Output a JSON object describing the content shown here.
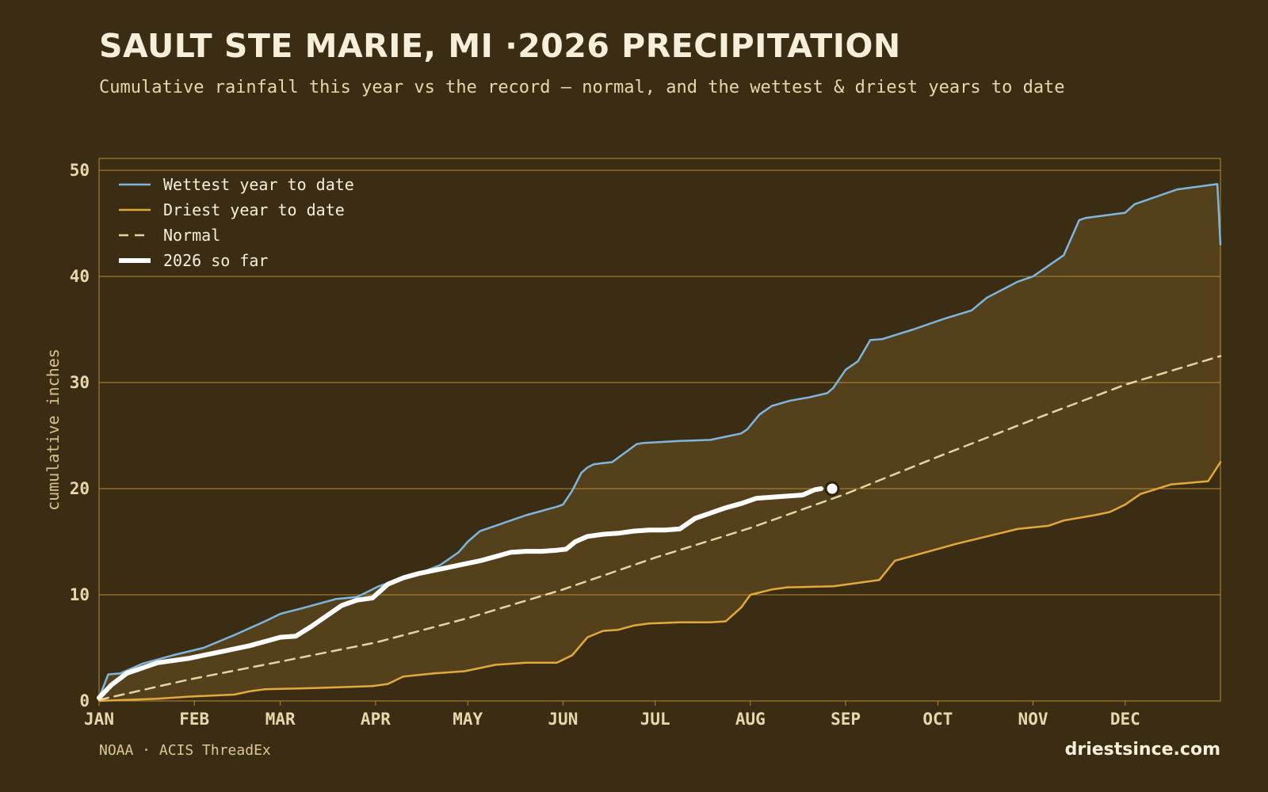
{
  "header": {
    "title": "SAULT STE MARIE, MI ·2026 PRECIPITATION",
    "subtitle": "Cumulative rainfall this year vs the record — normal, and the wettest & driest years to date"
  },
  "footer": {
    "source": "NOAA · ACIS ThreadEx",
    "site": "driestsince.com"
  },
  "colors": {
    "background": "#3a2d14",
    "band_fill": "#54411c",
    "wettest": "#7eb6de",
    "driest": "#e3a93c",
    "normal": "#e6d3a5",
    "current": "#ffffff",
    "grid": "#b88c33"
  },
  "chart_data": {
    "type": "line",
    "title": "SAULT STE MARIE, MI ·2026 PRECIPITATION",
    "ylabel": "cumulative inches",
    "xlabel": "",
    "ylim": [
      0,
      50
    ],
    "yticks": [
      0,
      10,
      20,
      30,
      40,
      50
    ],
    "xlim_day_of_year": [
      1,
      366
    ],
    "xticks": [
      {
        "label": "JAN",
        "day": 1
      },
      {
        "label": "FEB",
        "day": 32
      },
      {
        "label": "MAR",
        "day": 60
      },
      {
        "label": "APR",
        "day": 91
      },
      {
        "label": "MAY",
        "day": 121
      },
      {
        "label": "JUN",
        "day": 152
      },
      {
        "label": "JUL",
        "day": 182
      },
      {
        "label": "AUG",
        "day": 213
      },
      {
        "label": "SEP",
        "day": 244
      },
      {
        "label": "OCT",
        "day": 274
      },
      {
        "label": "NOV",
        "day": 305
      },
      {
        "label": "DEC",
        "day": 335
      }
    ],
    "legend_position": "top-left",
    "grid": "horizontal",
    "series": [
      {
        "name": "Wettest year to date",
        "style": "solid",
        "x": [
          1,
          4,
          8,
          15,
          25,
          35,
          45,
          55,
          60,
          64,
          68,
          78,
          85,
          92,
          98,
          105,
          112,
          118,
          121,
          125,
          130,
          140,
          150,
          152,
          155,
          158,
          160,
          162,
          165,
          168,
          176,
          178,
          190,
          200,
          210,
          212,
          216,
          220,
          226,
          232,
          238,
          240,
          244,
          248,
          252,
          256,
          266,
          276,
          285,
          290,
          300,
          305,
          315,
          320,
          322,
          335,
          338,
          345,
          352,
          365,
          366
        ],
        "y": [
          0.3,
          2.5,
          2.6,
          3.5,
          4.3,
          5.0,
          6.2,
          7.5,
          8.2,
          8.5,
          8.8,
          9.6,
          9.8,
          10.8,
          11.4,
          12.0,
          12.8,
          14.0,
          15.0,
          16.0,
          16.5,
          17.5,
          18.3,
          18.5,
          19.8,
          21.5,
          22.0,
          22.3,
          22.4,
          22.5,
          24.2,
          24.3,
          24.5,
          24.6,
          25.2,
          25.6,
          27.0,
          27.8,
          28.3,
          28.6,
          29.0,
          29.5,
          31.2,
          32.0,
          34.0,
          34.1,
          35.0,
          36.0,
          36.8,
          38.0,
          39.5,
          40.0,
          42.0,
          45.3,
          45.5,
          46.0,
          46.8,
          47.5,
          48.2,
          48.7,
          43.0
        ]
      },
      {
        "name": "Driest year to date",
        "style": "solid",
        "x": [
          1,
          20,
          30,
          45,
          50,
          55,
          70,
          80,
          90,
          95,
          100,
          110,
          120,
          125,
          130,
          140,
          150,
          155,
          160,
          165,
          170,
          175,
          180,
          190,
          200,
          205,
          210,
          213,
          220,
          225,
          240,
          245,
          255,
          260,
          270,
          280,
          290,
          300,
          310,
          315,
          325,
          330,
          335,
          340,
          350,
          362,
          366
        ],
        "y": [
          0,
          0.2,
          0.4,
          0.6,
          0.9,
          1.1,
          1.2,
          1.3,
          1.4,
          1.6,
          2.3,
          2.6,
          2.8,
          3.1,
          3.4,
          3.6,
          3.6,
          4.3,
          6.0,
          6.6,
          6.7,
          7.1,
          7.3,
          7.4,
          7.4,
          7.5,
          8.8,
          10.0,
          10.5,
          10.7,
          10.8,
          11.0,
          11.4,
          13.2,
          14.0,
          14.8,
          15.5,
          16.2,
          16.5,
          17.0,
          17.5,
          17.8,
          18.5,
          19.5,
          20.4,
          20.7,
          22.5
        ]
      },
      {
        "name": "Normal",
        "style": "dashed",
        "x": [
          1,
          30,
          60,
          91,
          121,
          152,
          182,
          213,
          244,
          274,
          305,
          335,
          366
        ],
        "y": [
          0.1,
          2.0,
          3.7,
          5.5,
          7.8,
          10.5,
          13.5,
          16.3,
          19.5,
          23.0,
          26.5,
          29.8,
          32.5
        ]
      },
      {
        "name": "2026 so far",
        "style": "thick",
        "x": [
          1,
          5,
          10,
          20,
          30,
          40,
          50,
          55,
          60,
          65,
          70,
          75,
          80,
          85,
          90,
          95,
          100,
          105,
          110,
          115,
          120,
          125,
          130,
          135,
          140,
          145,
          150,
          153,
          156,
          160,
          165,
          170,
          175,
          180,
          185,
          190,
          195,
          200,
          205,
          210,
          215,
          220,
          225,
          230,
          234,
          236
        ],
        "y": [
          0.3,
          1.5,
          2.6,
          3.6,
          4.0,
          4.6,
          5.2,
          5.6,
          6.0,
          6.1,
          7.0,
          8.0,
          9.0,
          9.5,
          9.7,
          11.0,
          11.6,
          12.0,
          12.3,
          12.6,
          12.9,
          13.2,
          13.6,
          14.0,
          14.1,
          14.1,
          14.2,
          14.3,
          15.0,
          15.5,
          15.7,
          15.8,
          16.0,
          16.1,
          16.1,
          16.2,
          17.2,
          17.7,
          18.2,
          18.6,
          19.1,
          19.2,
          19.3,
          19.4,
          19.9,
          20.0
        ]
      }
    ]
  }
}
